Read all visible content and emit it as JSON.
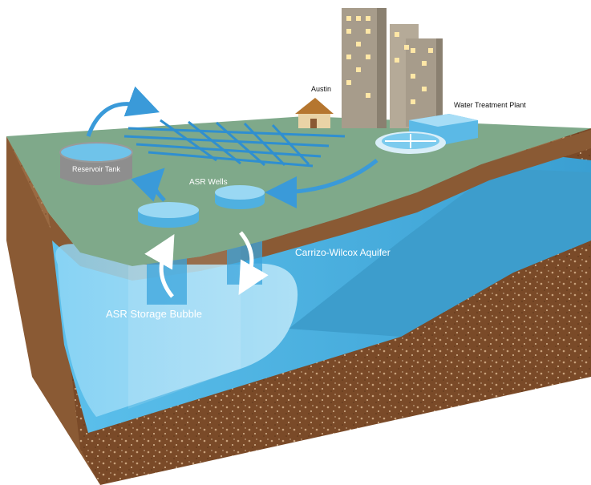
{
  "labels": {
    "austin": "Austin",
    "water_treatment_plant": "Water Treatment Plant",
    "reservoir_tank": "Reservoir Tank",
    "asr_wells": "ASR Wells",
    "aquifer": "Carrizo-Wilcox Aquifer",
    "storage_bubble": "ASR Storage Bubble"
  },
  "colors": {
    "ground_surface": "#7fa98a",
    "soil": "#8a5a34",
    "aquifer_water": "#4fb3df",
    "flow_arrows": "#3a9ad9",
    "buildings": "#a89f91"
  }
}
